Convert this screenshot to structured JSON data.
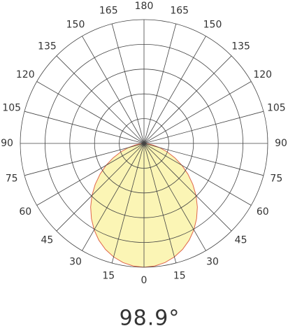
{
  "chart_data": {
    "type": "polar",
    "xticks": [
      0,
      15,
      30,
      45,
      60,
      75,
      90,
      105,
      120,
      135,
      150,
      165,
      180
    ],
    "rlim": [
      0,
      100
    ],
    "rticks": [
      20,
      40,
      60,
      80,
      100
    ],
    "series": [
      {
        "color": "#e0664a",
        "fill": "#fbf5b5",
        "x": [
          -90,
          -85,
          -80,
          -75,
          -70,
          -65,
          -60,
          -55,
          -50,
          -45,
          -40,
          -35,
          -30,
          -25,
          -20,
          -15,
          -10,
          -5,
          0,
          5,
          10,
          15,
          20,
          25,
          30,
          35,
          40,
          45,
          50,
          55,
          60,
          65,
          70,
          75,
          80,
          85,
          90
        ],
        "values": [
          0,
          2.6,
          7.2,
          13.2,
          20.0,
          27.5,
          35.4,
          43.4,
          51.5,
          59.5,
          67.1,
          74.1,
          80.6,
          86.3,
          91.1,
          94.9,
          97.7,
          99.4,
          100,
          99.4,
          97.7,
          94.9,
          91.1,
          86.3,
          80.6,
          74.1,
          67.1,
          59.5,
          51.5,
          43.4,
          35.4,
          27.5,
          20.0,
          13.2,
          7.2,
          2.6,
          0
        ]
      }
    ],
    "annotation": "98.9°"
  }
}
